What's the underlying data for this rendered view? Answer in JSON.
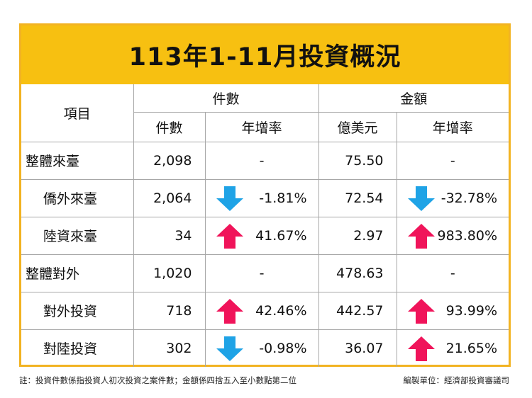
{
  "title": "113年1-11月投資概況",
  "header": {
    "item": "項目",
    "count_group": "件數",
    "amount_group": "金額",
    "count_sub": "件數",
    "count_rate_sub": "年增率",
    "amount_sub": "億美元",
    "amount_rate_sub": "年增率"
  },
  "chart_data": {
    "type": "table",
    "title": "113年1-11月投資概況",
    "columns": [
      "項目",
      "件數",
      "年增率",
      "億美元",
      "年增率"
    ],
    "rows": [
      {
        "item": "整體來臺",
        "level": 0,
        "count": "2,098",
        "count_rate": "-",
        "count_dir": "none",
        "amount": "75.50",
        "amount_rate": "-",
        "amount_dir": "none"
      },
      {
        "item": "僑外來臺",
        "level": 1,
        "count": "2,064",
        "count_rate": "-1.81%",
        "count_dir": "down",
        "amount": "72.54",
        "amount_rate": "-32.78%",
        "amount_dir": "down"
      },
      {
        "item": "陸資來臺",
        "level": 1,
        "count": "34",
        "count_rate": "41.67%",
        "count_dir": "up",
        "amount": "2.97",
        "amount_rate": "983.80%",
        "amount_dir": "up"
      },
      {
        "item": "整體對外",
        "level": 0,
        "count": "1,020",
        "count_rate": "-",
        "count_dir": "none",
        "amount": "478.63",
        "amount_rate": "-",
        "amount_dir": "none"
      },
      {
        "item": "對外投資",
        "level": 1,
        "count": "718",
        "count_rate": "42.46%",
        "count_dir": "up",
        "amount": "442.57",
        "amount_rate": "93.99%",
        "amount_dir": "up"
      },
      {
        "item": "對陸投資",
        "level": 1,
        "count": "302",
        "count_rate": "-0.98%",
        "count_dir": "down",
        "amount": "36.07",
        "amount_rate": "21.65%",
        "amount_dir": "up"
      }
    ]
  },
  "colors": {
    "title_bg": "#f7c011",
    "border": "#f2b322",
    "up_arrow": "#f0145a",
    "down_arrow": "#1fa3e6"
  },
  "footnote": "註：投資件數係指投資人初次投資之案件數；金額係四捨五入至小數點第二位",
  "source": "編製單位：經濟部投資審議司"
}
